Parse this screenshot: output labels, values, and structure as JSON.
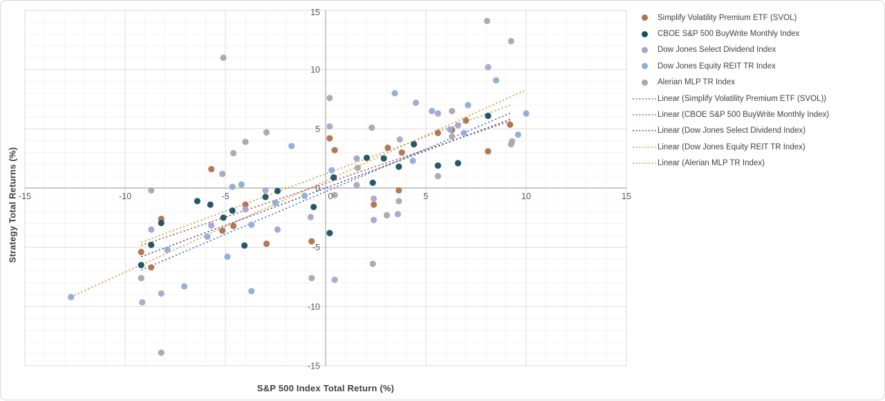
{
  "chart_data": {
    "type": "scatter",
    "title": "",
    "xlabel": "S&P 500 Index Total Return (%)",
    "ylabel": "Strategy Total Returns (%)",
    "xlim": [
      -15,
      15
    ],
    "ylim": [
      -15,
      15
    ],
    "x_ticks": [
      -15,
      -10,
      -5,
      0,
      5,
      10,
      15
    ],
    "y_ticks": [
      15,
      10,
      5,
      0,
      -5,
      -10,
      -15
    ],
    "grid": "major and minor gridlines on",
    "legend_position": "right",
    "colors": {
      "major_grid": "#dcdcdc",
      "minor_grid": "#f3f3f3",
      "axis_line": "#a6a6a6",
      "plot_border": "#d9d9d9",
      "tick_text": "#595959"
    },
    "series": [
      {
        "name": "Simplify Volatility Premium ETF (SVOL)",
        "color": "#b0714a",
        "points": [
          [
            -9.2,
            -5.4
          ],
          [
            -8.7,
            -6.7
          ],
          [
            -8.2,
            -2.6
          ],
          [
            -5.7,
            1.6
          ],
          [
            -5.15,
            -3.6
          ],
          [
            -4.6,
            -3.2
          ],
          [
            -4.0,
            -1.4
          ],
          [
            -2.95,
            -4.7
          ],
          [
            -0.7,
            -4.5
          ],
          [
            0.2,
            4.2
          ],
          [
            0.45,
            3.2
          ],
          [
            2.4,
            -1.4
          ],
          [
            3.1,
            3.4
          ],
          [
            3.8,
            3.0
          ],
          [
            3.65,
            -0.2
          ],
          [
            5.6,
            4.65
          ],
          [
            6.3,
            4.9
          ],
          [
            7.0,
            5.7
          ],
          [
            8.1,
            3.1
          ],
          [
            9.2,
            5.35
          ]
        ]
      },
      {
        "name": "CBOE S&P 500 BuyWrite Monthly Index",
        "color": "#1a5060",
        "points": [
          [
            -9.2,
            -6.5
          ],
          [
            -8.7,
            -4.8
          ],
          [
            -8.2,
            -2.95
          ],
          [
            -6.4,
            -1.1
          ],
          [
            -5.75,
            -1.4
          ],
          [
            -5.1,
            -2.5
          ],
          [
            -4.65,
            -1.9
          ],
          [
            -4.05,
            -4.85
          ],
          [
            -3.0,
            -0.75
          ],
          [
            -2.4,
            -0.25
          ],
          [
            -0.6,
            -1.6
          ],
          [
            0.2,
            -3.8
          ],
          [
            0.4,
            0.9
          ],
          [
            2.05,
            2.55
          ],
          [
            2.35,
            0.45
          ],
          [
            2.9,
            2.5
          ],
          [
            3.65,
            1.8
          ],
          [
            4.4,
            3.7
          ],
          [
            5.6,
            1.9
          ],
          [
            6.6,
            2.1
          ],
          [
            8.1,
            6.1
          ]
        ]
      },
      {
        "name": "Dow Jones Select Dividend Index",
        "color": "#a9a5cc",
        "points": [
          [
            -9.15,
            -9.65
          ],
          [
            -8.7,
            -3.5
          ],
          [
            -8.2,
            -8.9
          ],
          [
            -5.7,
            -3.15
          ],
          [
            -5.15,
            1.2
          ],
          [
            -4.0,
            -1.8
          ],
          [
            -3.0,
            -0.2
          ],
          [
            -2.4,
            -3.5
          ],
          [
            -0.75,
            -2.45
          ],
          [
            0.45,
            -7.75
          ],
          [
            0.2,
            5.2
          ],
          [
            1.55,
            0.25
          ],
          [
            2.4,
            -0.9
          ],
          [
            2.4,
            -2.7
          ],
          [
            3.6,
            -2.2
          ],
          [
            3.7,
            4.1
          ],
          [
            4.5,
            7.2
          ],
          [
            5.6,
            6.3
          ],
          [
            6.6,
            5.3
          ],
          [
            8.1,
            10.2
          ],
          [
            9.3,
            3.95
          ]
        ]
      },
      {
        "name": "Dow Jones Equity REIT TR Index",
        "color": "#8fabd8",
        "points": [
          [
            -12.7,
            -9.2
          ],
          [
            -7.9,
            -5.2
          ],
          [
            -7.05,
            -8.3
          ],
          [
            -5.9,
            -4.1
          ],
          [
            -4.9,
            -5.8
          ],
          [
            -4.65,
            0.1
          ],
          [
            -4.2,
            0.3
          ],
          [
            -3.7,
            -8.7
          ],
          [
            -3.7,
            -3.1
          ],
          [
            -2.5,
            -1.25
          ],
          [
            -1.7,
            3.55
          ],
          [
            -1.05,
            -0.65
          ],
          [
            0.3,
            1.5
          ],
          [
            1.55,
            2.5
          ],
          [
            3.45,
            8.0
          ],
          [
            4.35,
            2.3
          ],
          [
            5.3,
            6.5
          ],
          [
            6.2,
            4.95
          ],
          [
            6.9,
            4.65
          ],
          [
            7.1,
            7.0
          ],
          [
            8.5,
            9.1
          ],
          [
            9.6,
            4.5
          ],
          [
            10.0,
            6.3
          ]
        ]
      },
      {
        "name": "Alerian MLP TR Index",
        "color": "#a8a8a8",
        "points": [
          [
            -9.2,
            -7.6
          ],
          [
            -8.7,
            -0.2
          ],
          [
            -8.2,
            -13.9
          ],
          [
            -5.1,
            11.0
          ],
          [
            -4.6,
            2.95
          ],
          [
            -4.0,
            3.9
          ],
          [
            -2.95,
            4.7
          ],
          [
            -0.7,
            -7.6
          ],
          [
            0.2,
            7.6
          ],
          [
            0.45,
            -0.6
          ],
          [
            1.6,
            1.7
          ],
          [
            2.3,
            5.1
          ],
          [
            2.35,
            -6.4
          ],
          [
            3.05,
            -2.3
          ],
          [
            3.65,
            -1.1
          ],
          [
            5.6,
            1.0
          ],
          [
            6.3,
            4.35
          ],
          [
            6.3,
            6.5
          ],
          [
            8.05,
            14.1
          ],
          [
            9.25,
            12.4
          ],
          [
            9.25,
            3.7
          ]
        ]
      }
    ],
    "trendlines": [
      {
        "name": "Linear (Simplify Volatility Premium ETF (SVOL))",
        "color": "#4472c4",
        "slope": 0.72,
        "intercept": -0.3,
        "x_range": [
          -9.2,
          9.2
        ]
      },
      {
        "name": "Linear (CBOE S&P 500 BuyWrite Monthly Index)",
        "color": "#b85150",
        "slope": 0.57,
        "intercept": 0.4,
        "x_range": [
          -9.2,
          9.2
        ]
      },
      {
        "name": "Linear (Dow Jones Select Dividend Index)",
        "color": "#4f4d75",
        "slope": 0.63,
        "intercept": 0.0,
        "x_range": [
          -9.2,
          9.3
        ]
      },
      {
        "name": "Linear (Dow Jones Equity REIT TR Index)",
        "color": "#e8913a",
        "slope": 0.77,
        "intercept": 0.6,
        "x_range": [
          -12.7,
          10.0
        ]
      },
      {
        "name": "Linear (Alerian MLP TR Index)",
        "color": "#a2ad52",
        "slope": 0.63,
        "intercept": 1.2,
        "x_range": [
          -9.2,
          9.25
        ]
      }
    ]
  },
  "legend": {
    "items": [
      {
        "label": "Simplify Volatility Premium ETF (SVOL)",
        "marker": "dot",
        "color": "#b0714a"
      },
      {
        "label": "CBOE S&P 500 BuyWrite Monthly Index",
        "marker": "dot",
        "color": "#1a5060"
      },
      {
        "label": "Dow Jones Select Dividend Index",
        "marker": "dot",
        "color": "#a9a5cc"
      },
      {
        "label": "Dow Jones Equity REIT TR Index",
        "marker": "dot",
        "color": "#8fabd8"
      },
      {
        "label": "Alerian MLP TR Index",
        "marker": "dot",
        "color": "#a8a8a8"
      },
      {
        "label": "Linear (Simplify Volatility Premium ETF (SVOL))",
        "marker": "dotted-line",
        "color": "#4472c4"
      },
      {
        "label": "Linear (CBOE S&P 500 BuyWrite Monthly Index)",
        "marker": "dotted-line",
        "color": "#b85150"
      },
      {
        "label": "Linear (Dow Jones Select Dividend Index)",
        "marker": "dotted-line",
        "color": "#4f4d75"
      },
      {
        "label": "Linear (Dow Jones Equity REIT TR Index)",
        "marker": "dotted-line",
        "color": "#e8913a"
      },
      {
        "label": "Linear (Alerian MLP TR Index)",
        "marker": "dotted-line",
        "color": "#a2ad52"
      }
    ]
  }
}
